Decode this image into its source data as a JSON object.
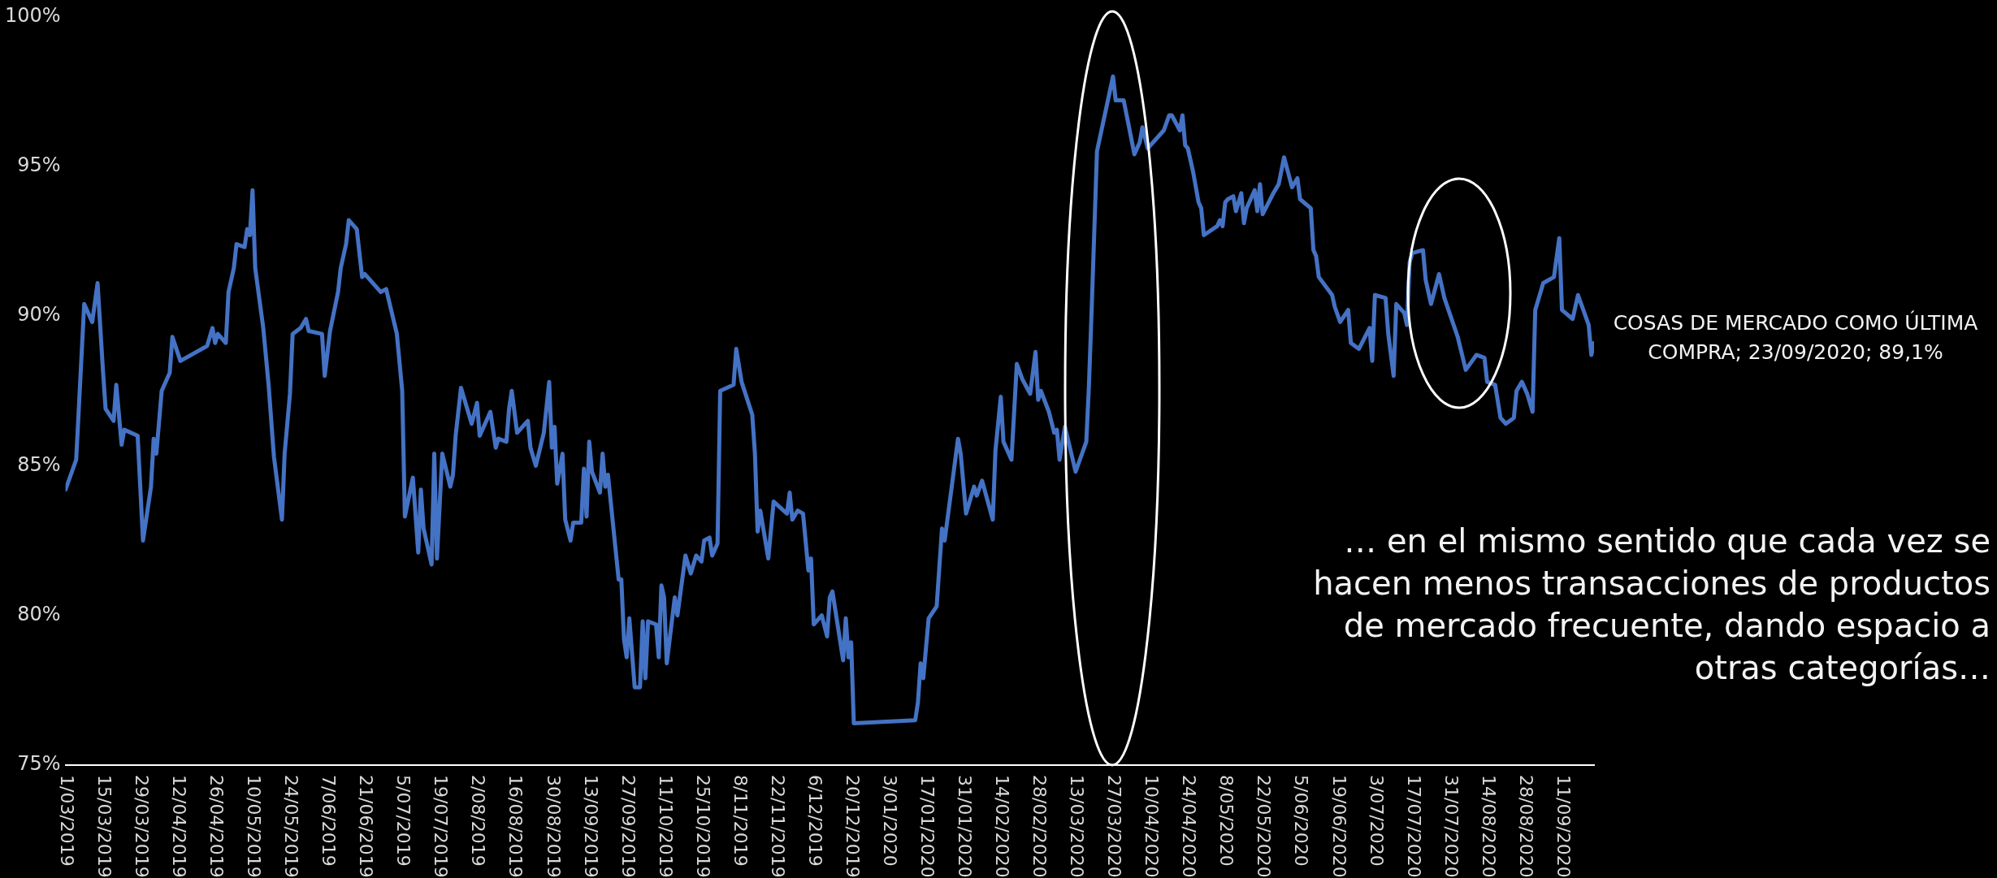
{
  "chart_data": {
    "type": "line",
    "color": "#4472c4",
    "marker": "none",
    "x": [
      "2019-03-01",
      "2019-03-05",
      "2019-03-08",
      "2019-03-11",
      "2019-03-13",
      "2019-03-15",
      "2019-03-16",
      "2019-03-19",
      "2019-03-20",
      "2019-03-22",
      "2019-03-23",
      "2019-03-28",
      "2019-03-30",
      "2019-04-02",
      "2019-04-03",
      "2019-04-04",
      "2019-04-06",
      "2019-04-09",
      "2019-04-10",
      "2019-04-13",
      "2019-04-23",
      "2019-04-25",
      "2019-04-26",
      "2019-04-27",
      "2019-04-30",
      "2019-05-01",
      "2019-05-03",
      "2019-05-04",
      "2019-05-07",
      "2019-05-08",
      "2019-05-09",
      "2019-05-10",
      "2019-05-11",
      "2019-05-14",
      "2019-05-16",
      "2019-05-18",
      "2019-05-21",
      "2019-05-22",
      "2019-05-24",
      "2019-05-25",
      "2019-05-28",
      "2019-05-30",
      "2019-05-31",
      "2019-06-05",
      "2019-06-06",
      "2019-06-08",
      "2019-06-11",
      "2019-06-12",
      "2019-06-14",
      "2019-06-15",
      "2019-06-18",
      "2019-06-20",
      "2019-06-21",
      "2019-06-27",
      "2019-06-29",
      "2019-07-03",
      "2019-07-05",
      "2019-07-06",
      "2019-07-09",
      "2019-07-11",
      "2019-07-12",
      "2019-07-13",
      "2019-07-16",
      "2019-07-17",
      "2019-07-18",
      "2019-07-20",
      "2019-07-23",
      "2019-07-24",
      "2019-07-25",
      "2019-07-27",
      "2019-07-31",
      "2019-08-02",
      "2019-08-03",
      "2019-08-07",
      "2019-08-09",
      "2019-08-10",
      "2019-08-13",
      "2019-08-14",
      "2019-08-15",
      "2019-08-17",
      "2019-08-21",
      "2019-08-22",
      "2019-08-24",
      "2019-08-27",
      "2019-08-29",
      "2019-08-30",
      "2019-08-31",
      "2019-09-01",
      "2019-09-03",
      "2019-09-04",
      "2019-09-06",
      "2019-09-07",
      "2019-09-10",
      "2019-09-11",
      "2019-09-12",
      "2019-09-13",
      "2019-09-14",
      "2019-09-17",
      "2019-09-18",
      "2019-09-19",
      "2019-09-20",
      "2019-09-24",
      "2019-09-25",
      "2019-09-26",
      "2019-09-27",
      "2019-09-28",
      "2019-09-30",
      "2019-10-02",
      "2019-10-03",
      "2019-10-04",
      "2019-10-05",
      "2019-10-08",
      "2019-10-09",
      "2019-10-10",
      "2019-10-11",
      "2019-10-12",
      "2019-10-15",
      "2019-10-16",
      "2019-10-19",
      "2019-10-21",
      "2019-10-23",
      "2019-10-25",
      "2019-10-26",
      "2019-10-28",
      "2019-10-29",
      "2019-10-31",
      "2019-11-01",
      "2019-11-06",
      "2019-11-07",
      "2019-11-09",
      "2019-11-13",
      "2019-11-14",
      "2019-11-15",
      "2019-11-16",
      "2019-11-19",
      "2019-11-21",
      "2019-11-26",
      "2019-11-27",
      "2019-11-28",
      "2019-11-30",
      "2019-12-02",
      "2019-12-04",
      "2019-12-05",
      "2019-12-06",
      "2019-12-09",
      "2019-12-11",
      "2019-12-12",
      "2019-12-13",
      "2019-12-17",
      "2019-12-18",
      "2019-12-19",
      "2019-12-20",
      "2019-12-21",
      "2020-01-13",
      "2020-01-14",
      "2020-01-15",
      "2020-01-16",
      "2020-01-18",
      "2020-01-21",
      "2020-01-23",
      "2020-01-24",
      "2020-01-29",
      "2020-01-30",
      "2020-02-01",
      "2020-02-04",
      "2020-02-05",
      "2020-02-07",
      "2020-02-11",
      "2020-02-12",
      "2020-02-14",
      "2020-02-15",
      "2020-02-18",
      "2020-02-20",
      "2020-02-22",
      "2020-02-25",
      "2020-02-27",
      "2020-02-28",
      "2020-02-29",
      "2020-03-03",
      "2020-03-05",
      "2020-03-06",
      "2020-03-07",
      "2020-03-09",
      "2020-03-13",
      "2020-03-17",
      "2020-03-18",
      "2020-03-19",
      "2020-03-21",
      "2020-03-27",
      "2020-03-28",
      "2020-03-31",
      "2020-04-02",
      "2020-04-04",
      "2020-04-06",
      "2020-04-07",
      "2020-04-09",
      "2020-04-15",
      "2020-04-17",
      "2020-04-18",
      "2020-04-21",
      "2020-04-22",
      "2020-04-23",
      "2020-04-24",
      "2020-04-26",
      "2020-04-28",
      "2020-04-29",
      "2020-04-30",
      "2020-05-05",
      "2020-05-06",
      "2020-05-07",
      "2020-05-08",
      "2020-05-09",
      "2020-05-11",
      "2020-05-12",
      "2020-05-14",
      "2020-05-15",
      "2020-05-16",
      "2020-05-19",
      "2020-05-20",
      "2020-05-21",
      "2020-05-22",
      "2020-05-26",
      "2020-05-28",
      "2020-05-30",
      "2020-06-02",
      "2020-06-04",
      "2020-06-05",
      "2020-06-09",
      "2020-06-10",
      "2020-06-11",
      "2020-06-12",
      "2020-06-17",
      "2020-06-18",
      "2020-06-20",
      "2020-06-23",
      "2020-06-24",
      "2020-06-27",
      "2020-07-01",
      "2020-07-02",
      "2020-07-03",
      "2020-07-07",
      "2020-07-08",
      "2020-07-10",
      "2020-07-11",
      "2020-07-14",
      "2020-07-15",
      "2020-07-16",
      "2020-07-17",
      "2020-07-21",
      "2020-07-22",
      "2020-07-24",
      "2020-07-27",
      "2020-07-29",
      "2020-08-03",
      "2020-08-06",
      "2020-08-10",
      "2020-08-13",
      "2020-08-14",
      "2020-08-17",
      "2020-08-19",
      "2020-08-21",
      "2020-08-24",
      "2020-08-25",
      "2020-08-27",
      "2020-08-29",
      "2020-08-31",
      "2020-09-01",
      "2020-09-04",
      "2020-09-08",
      "2020-09-10",
      "2020-09-11",
      "2020-09-15",
      "2020-09-17",
      "2020-09-21",
      "2020-09-22",
      "2020-09-23"
    ],
    "values": [
      84.2,
      85.2,
      90.4,
      89.8,
      91.1,
      88.2,
      86.9,
      86.5,
      87.7,
      85.7,
      86.2,
      86.0,
      82.5,
      84.3,
      85.9,
      85.4,
      87.5,
      88.1,
      89.3,
      88.5,
      89.0,
      89.6,
      89.1,
      89.4,
      89.1,
      90.8,
      91.6,
      92.4,
      92.3,
      92.9,
      92.7,
      94.2,
      91.6,
      89.6,
      87.7,
      85.3,
      83.2,
      85.4,
      87.4,
      89.4,
      89.6,
      89.9,
      89.5,
      89.4,
      88.0,
      89.5,
      90.8,
      91.6,
      92.4,
      93.2,
      92.9,
      91.3,
      91.4,
      90.8,
      90.9,
      89.4,
      87.5,
      83.3,
      84.6,
      82.1,
      84.2,
      82.9,
      81.7,
      85.4,
      81.9,
      85.4,
      84.3,
      84.7,
      86.0,
      87.6,
      86.4,
      87.1,
      86.0,
      86.8,
      85.6,
      85.9,
      85.8,
      86.9,
      87.5,
      86.1,
      86.5,
      85.6,
      85.0,
      86.1,
      87.8,
      85.6,
      86.3,
      84.4,
      85.4,
      83.2,
      82.5,
      83.1,
      83.1,
      84.9,
      83.3,
      85.8,
      84.8,
      84.1,
      85.4,
      84.3,
      84.7,
      81.2,
      81.2,
      79.2,
      78.6,
      79.9,
      77.6,
      77.6,
      79.8,
      77.9,
      79.8,
      79.7,
      78.6,
      81.0,
      80.6,
      78.4,
      80.6,
      80.0,
      82.0,
      81.4,
      82.0,
      81.8,
      82.5,
      82.6,
      82.0,
      82.4,
      87.5,
      87.7,
      88.9,
      87.8,
      86.7,
      85.4,
      82.8,
      83.5,
      81.9,
      83.8,
      83.4,
      84.1,
      83.2,
      83.5,
      83.4,
      81.5,
      81.9,
      79.7,
      80.0,
      79.3,
      80.6,
      80.8,
      78.5,
      79.9,
      78.6,
      79.1,
      76.4,
      76.5,
      77.1,
      78.4,
      77.9,
      79.9,
      80.3,
      82.9,
      82.5,
      85.9,
      85.4,
      83.4,
      84.3,
      84.0,
      84.5,
      83.2,
      85.5,
      87.3,
      85.8,
      85.2,
      88.4,
      87.9,
      87.4,
      88.8,
      87.2,
      87.5,
      86.8,
      86.1,
      86.2,
      85.2,
      86.3,
      84.8,
      85.8,
      87.7,
      90.2,
      95.5,
      98.0,
      97.2,
      97.2,
      96.3,
      95.4,
      95.8,
      96.3,
      95.6,
      96.2,
      96.7,
      96.7,
      96.2,
      96.7,
      95.7,
      95.6,
      94.8,
      93.8,
      93.6,
      92.7,
      93.0,
      93.2,
      93.0,
      93.8,
      93.9,
      94.0,
      93.5,
      94.1,
      93.1,
      93.6,
      94.2,
      93.5,
      94.4,
      93.4,
      94.1,
      94.4,
      95.3,
      94.3,
      94.6,
      93.9,
      93.6,
      92.2,
      92.0,
      91.3,
      90.7,
      90.3,
      89.8,
      90.2,
      89.1,
      88.9,
      89.6,
      88.5,
      90.7,
      90.6,
      89.4,
      88.0,
      90.4,
      90.1,
      89.7,
      91.8,
      92.1,
      92.2,
      91.2,
      90.4,
      91.4,
      90.6,
      89.3,
      88.2,
      88.7,
      88.6,
      87.8,
      87.7,
      86.6,
      86.4,
      86.6,
      87.5,
      87.8,
      87.4,
      86.8,
      90.2,
      91.1,
      91.3,
      92.6,
      90.2,
      89.9,
      90.7,
      89.7,
      88.7,
      89.1
    ],
    "xlim": [
      "2019-03-01",
      "2020-09-23"
    ],
    "xticks": [
      {
        "value": "2019-03-01",
        "label": "1/03/2019"
      },
      {
        "value": "2019-03-15",
        "label": "15/03/2019"
      },
      {
        "value": "2019-03-29",
        "label": "29/03/2019"
      },
      {
        "value": "2019-04-12",
        "label": "12/04/2019"
      },
      {
        "value": "2019-04-26",
        "label": "26/04/2019"
      },
      {
        "value": "2019-05-10",
        "label": "10/05/2019"
      },
      {
        "value": "2019-05-24",
        "label": "24/05/2019"
      },
      {
        "value": "2019-06-07",
        "label": "7/06/2019"
      },
      {
        "value": "2019-06-21",
        "label": "21/06/2019"
      },
      {
        "value": "2019-07-05",
        "label": "5/07/2019"
      },
      {
        "value": "2019-07-19",
        "label": "19/07/2019"
      },
      {
        "value": "2019-08-02",
        "label": "2/08/2019"
      },
      {
        "value": "2019-08-16",
        "label": "16/08/2019"
      },
      {
        "value": "2019-08-30",
        "label": "30/08/2019"
      },
      {
        "value": "2019-09-13",
        "label": "13/09/2019"
      },
      {
        "value": "2019-09-27",
        "label": "27/09/2019"
      },
      {
        "value": "2019-10-11",
        "label": "11/10/2019"
      },
      {
        "value": "2019-10-25",
        "label": "25/10/2019"
      },
      {
        "value": "2019-11-08",
        "label": "8/11/2019"
      },
      {
        "value": "2019-11-22",
        "label": "22/11/2019"
      },
      {
        "value": "2019-12-06",
        "label": "6/12/2019"
      },
      {
        "value": "2019-12-20",
        "label": "20/12/2019"
      },
      {
        "value": "2020-01-03",
        "label": "3/01/2020"
      },
      {
        "value": "2020-01-17",
        "label": "17/01/2020"
      },
      {
        "value": "2020-01-31",
        "label": "31/01/2020"
      },
      {
        "value": "2020-02-14",
        "label": "14/02/2020"
      },
      {
        "value": "2020-02-28",
        "label": "28/02/2020"
      },
      {
        "value": "2020-03-13",
        "label": "13/03/2020"
      },
      {
        "value": "2020-03-27",
        "label": "27/03/2020"
      },
      {
        "value": "2020-04-10",
        "label": "10/04/2020"
      },
      {
        "value": "2020-04-24",
        "label": "24/04/2020"
      },
      {
        "value": "2020-05-08",
        "label": "8/05/2020"
      },
      {
        "value": "2020-05-22",
        "label": "22/05/2020"
      },
      {
        "value": "2020-06-05",
        "label": "5/06/2020"
      },
      {
        "value": "2020-06-19",
        "label": "19/06/2020"
      },
      {
        "value": "2020-07-03",
        "label": "3/07/2020"
      },
      {
        "value": "2020-07-17",
        "label": "17/07/2020"
      },
      {
        "value": "2020-07-31",
        "label": "31/07/2020"
      },
      {
        "value": "2020-08-14",
        "label": "14/08/2020"
      },
      {
        "value": "2020-08-28",
        "label": "28/08/2020"
      },
      {
        "value": "2020-09-11",
        "label": "11/09/2020"
      }
    ],
    "ylim": [
      75,
      100
    ],
    "yticks": [
      {
        "value": 75,
        "label": "75%"
      },
      {
        "value": 80,
        "label": "80%"
      },
      {
        "value": 85,
        "label": "85%"
      },
      {
        "value": 90,
        "label": "90%"
      },
      {
        "value": 95,
        "label": "95%"
      },
      {
        "value": 100,
        "label": "100%"
      }
    ],
    "annotations": [
      {
        "text": "COSAS DE MERCADO COMO ÚLTIMA COMPRA; 23/09/2020; 89,1%",
        "x": "2020-09-23",
        "y": 89.1
      },
      "… en el mismo sentido que cada vez se hacen menos transacciones de productos de mercado frecuente, dando espacio a otras categorías…"
    ]
  }
}
